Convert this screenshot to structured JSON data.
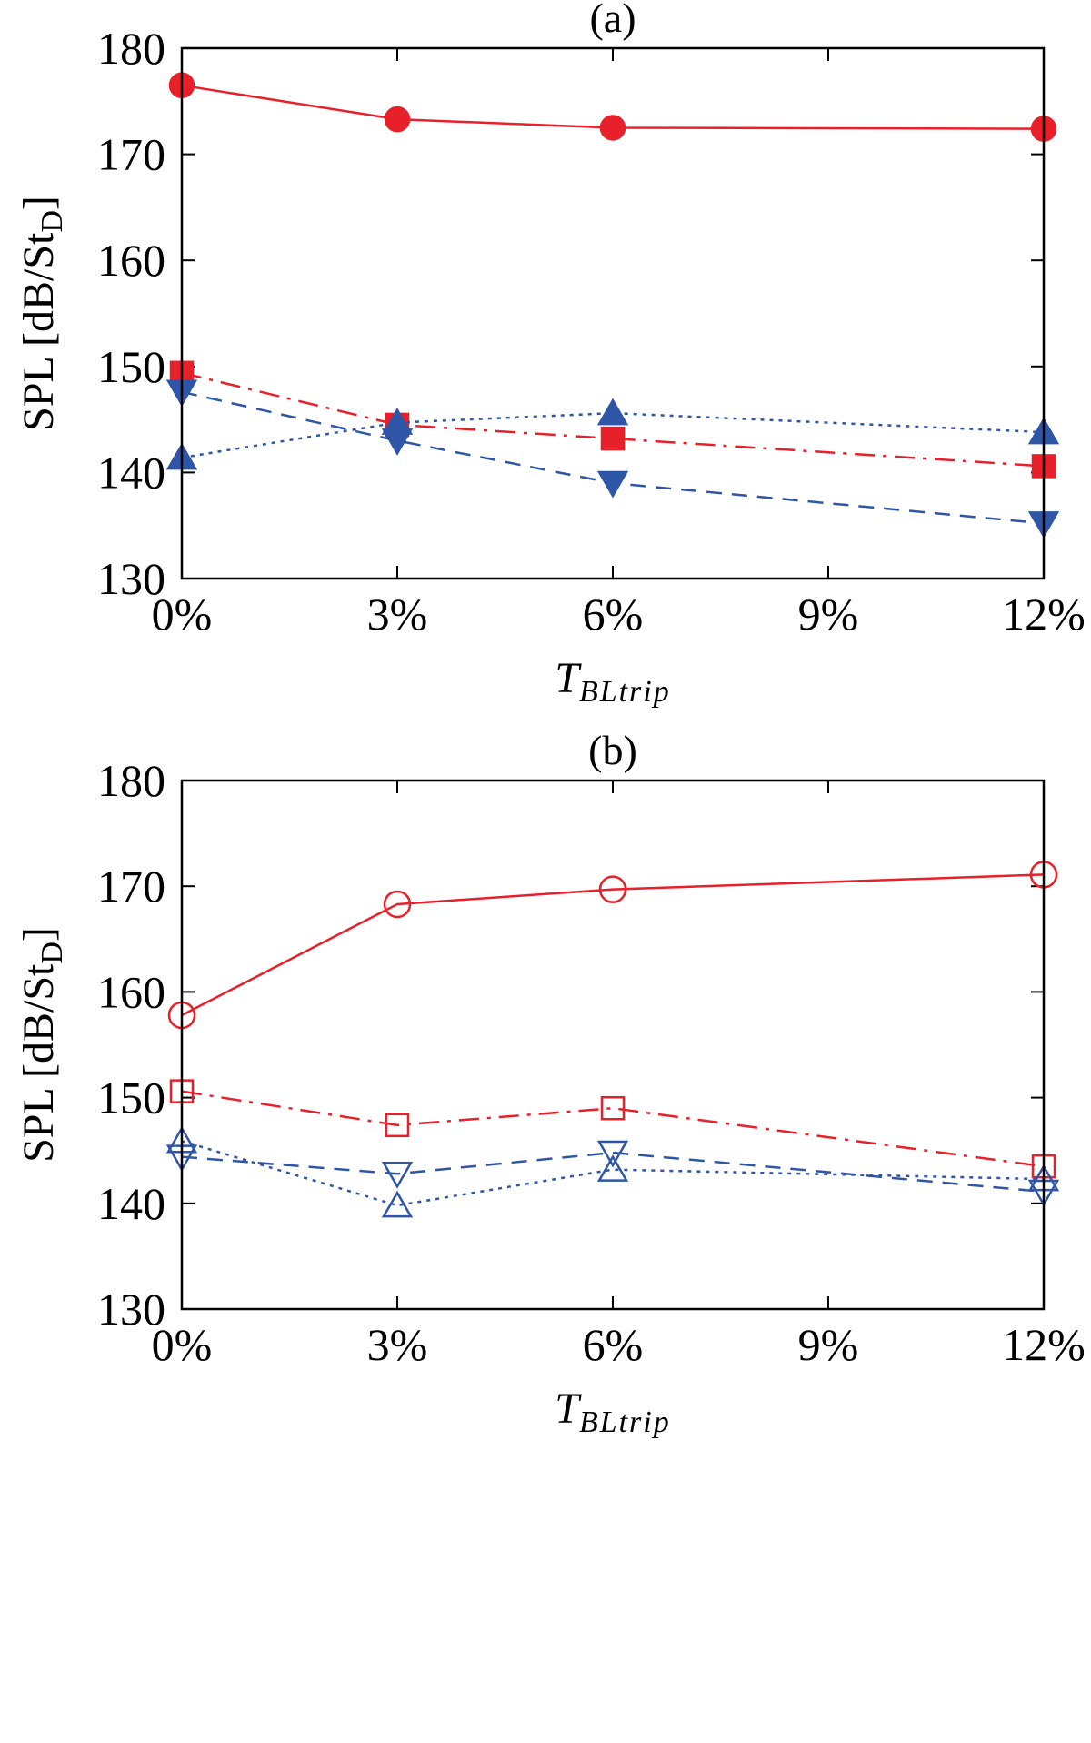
{
  "chart_data": [
    {
      "type": "line",
      "title": "(a)",
      "ylabel": "SPL [dB/St",
      "ylabel_sub": "D",
      "ylabel_suffix": "]",
      "xlabel_main": "T",
      "xlabel_sub": "BLtrip",
      "x": [
        0,
        3,
        6,
        12
      ],
      "xlim": [
        0,
        12
      ],
      "ylim": [
        130,
        180
      ],
      "xticks": [
        0,
        3,
        6,
        9,
        12
      ],
      "xtick_labels": [
        "0%",
        "3%",
        "6%",
        "9%",
        "12%"
      ],
      "yticks": [
        130,
        140,
        150,
        160,
        170,
        180
      ],
      "ytick_labels": [
        "130",
        "140",
        "150",
        "160",
        "170",
        "180"
      ],
      "series": [
        {
          "name": "circle",
          "values": [
            176.5,
            173.3,
            172.5,
            172.4
          ],
          "color": "#e8202a",
          "dash": "solid",
          "marker": "circle",
          "filled": true
        },
        {
          "name": "square",
          "values": [
            149.4,
            144.5,
            143.2,
            140.6
          ],
          "color": "#e8202a",
          "dash": "dashdot",
          "marker": "square",
          "filled": true
        },
        {
          "name": "triangle-down",
          "values": [
            147.6,
            143.0,
            139.0,
            135.2
          ],
          "color": "#2f56a6",
          "dash": "dashed",
          "marker": "triangle-down",
          "filled": true
        },
        {
          "name": "triangle-up",
          "values": [
            141.4,
            144.7,
            145.6,
            143.8
          ],
          "color": "#2f56a6",
          "dash": "dotted",
          "marker": "triangle-up",
          "filled": true
        }
      ]
    },
    {
      "type": "line",
      "title": "(b)",
      "ylabel": "SPL [dB/St",
      "ylabel_sub": "D",
      "ylabel_suffix": "]",
      "xlabel_main": "T",
      "xlabel_sub": "BLtrip",
      "x": [
        0,
        3,
        6,
        12
      ],
      "xlim": [
        0,
        12
      ],
      "ylim": [
        130,
        180
      ],
      "xticks": [
        0,
        3,
        6,
        9,
        12
      ],
      "xtick_labels": [
        "0%",
        "3%",
        "6%",
        "9%",
        "12%"
      ],
      "yticks": [
        130,
        140,
        150,
        160,
        170,
        180
      ],
      "ytick_labels": [
        "130",
        "140",
        "150",
        "160",
        "170",
        "180"
      ],
      "series": [
        {
          "name": "circle",
          "values": [
            157.8,
            168.3,
            169.7,
            171.1
          ],
          "color": "#e8202a",
          "dash": "solid",
          "marker": "circle",
          "filled": false
        },
        {
          "name": "square",
          "values": [
            150.6,
            147.4,
            149.0,
            143.5
          ],
          "color": "#e8202a",
          "dash": "dashdot",
          "marker": "square",
          "filled": false
        },
        {
          "name": "triangle-down",
          "values": [
            144.4,
            142.8,
            144.8,
            141.1
          ],
          "color": "#2f56a6",
          "dash": "dashed",
          "marker": "triangle-down",
          "filled": false
        },
        {
          "name": "triangle-up",
          "values": [
            145.9,
            139.8,
            143.2,
            142.3
          ],
          "color": "#2f56a6",
          "dash": "dotted",
          "marker": "triangle-up",
          "filled": false
        }
      ]
    }
  ]
}
